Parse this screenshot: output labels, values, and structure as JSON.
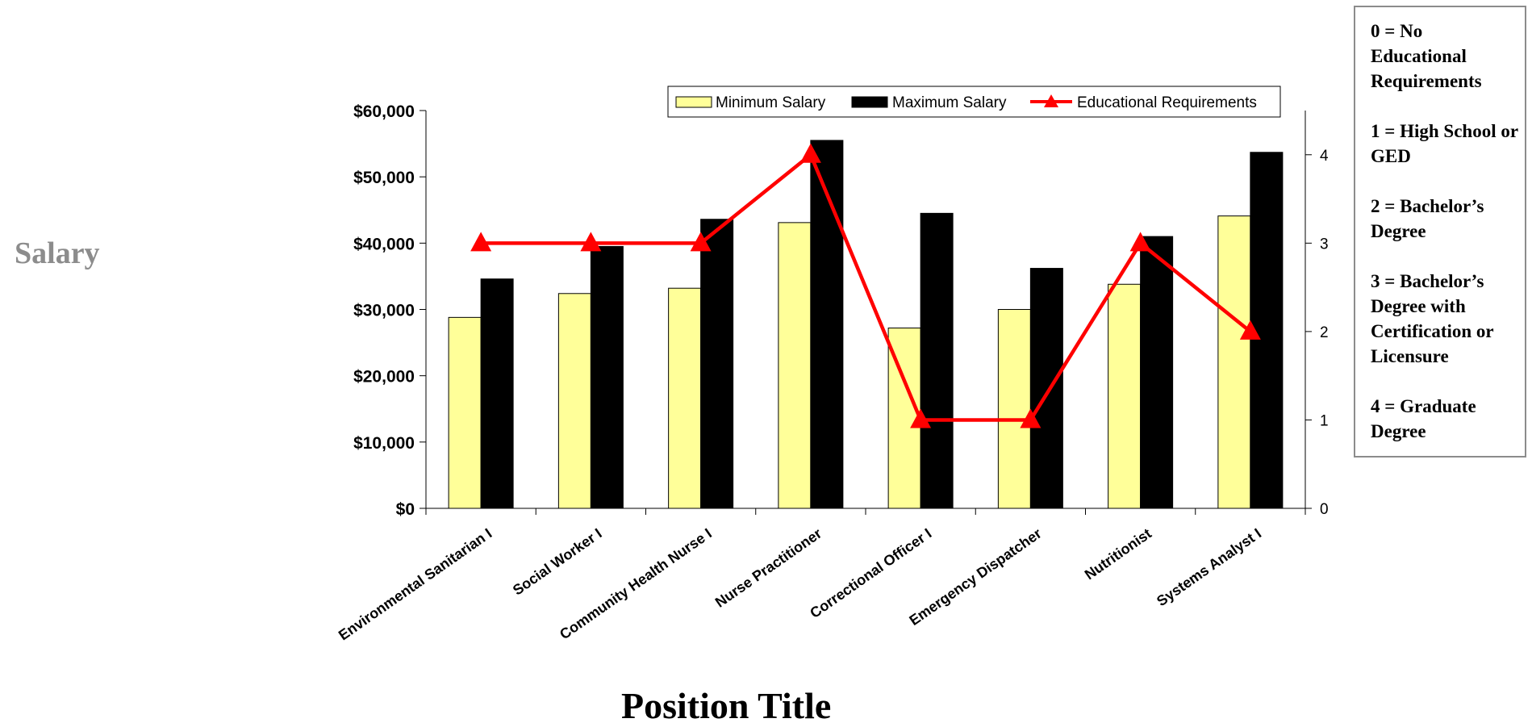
{
  "chart_data": {
    "type": "bar",
    "categories": [
      "Environmental Sanitarian I",
      "Social Worker I",
      "Community Health Nurse I",
      "Nurse Practitioner",
      "Correctional Officer I",
      "Emergency Dispatcher",
      "Nutritionist",
      "Systems Analyst I"
    ],
    "series": [
      {
        "name": "Minimum Salary",
        "type": "bar",
        "axis": "left",
        "color": "#ffff99",
        "values": [
          28800,
          32400,
          33200,
          43100,
          27200,
          30000,
          33800,
          44100
        ]
      },
      {
        "name": "Maximum Salary",
        "type": "bar",
        "axis": "left",
        "color": "#000000",
        "values": [
          34600,
          39500,
          43600,
          55500,
          44500,
          36200,
          41000,
          53700
        ]
      },
      {
        "name": "Educational Requirements",
        "type": "line",
        "axis": "right",
        "color": "#ff0000",
        "marker": "triangle",
        "values": [
          3,
          3,
          3,
          4,
          1,
          1,
          3,
          2
        ]
      }
    ],
    "ylabel": "Salary",
    "xlabel": "Position Title",
    "ylim": [
      0,
      60000
    ],
    "yticks": [
      "$0",
      "$10,000",
      "$20,000",
      "$30,000",
      "$40,000",
      "$50,000",
      "$60,000"
    ],
    "y2lim": [
      0,
      4.5
    ],
    "y2ticks": [
      "0",
      "1",
      "2",
      "3",
      "4"
    ],
    "legend_position": "top",
    "grid": false
  },
  "key": {
    "items": [
      "0 = No Educational Requirements",
      "1 = High School or GED",
      "2 = Bachelor’s Degree",
      "3 = Bachelor’s Degree with Certification or Licensure",
      "4 = Graduate Degree"
    ]
  }
}
